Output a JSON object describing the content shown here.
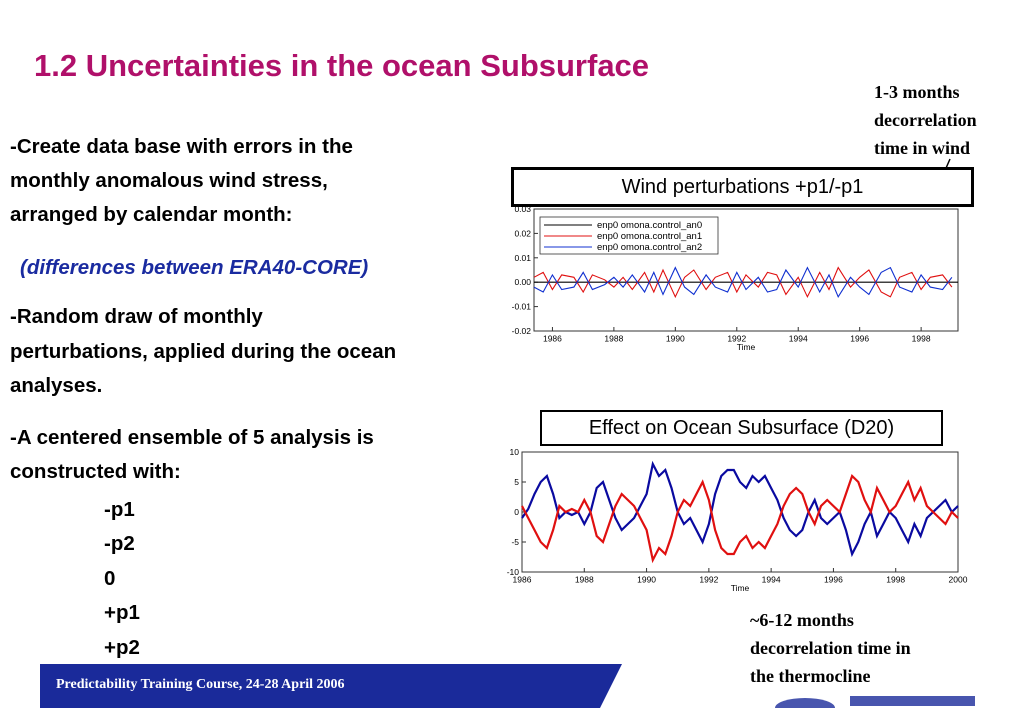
{
  "title": "1.2 Uncertainties in the ocean Subsurface",
  "bullets": {
    "b1_line1": "-Create data base with errors in the",
    "b1_line2": "monthly anomalous wind stress,",
    "b1_line3": "arranged by calendar month:",
    "b1_note": "(differences between ERA40-CORE)",
    "b2_line1": "-Random draw of monthly",
    "b2_line2": "perturbations, applied during the ocean",
    "b2_line3": "analyses.",
    "b3_line1": "-A centered ensemble of 5 analysis is",
    "b3_line2": "constructed with:"
  },
  "ensemble_members": [
    "-p1",
    "-p2",
    "0",
    "+p1",
    "+p2"
  ],
  "note_top": [
    "1-3 months",
    "decorrelation",
    "time in wind"
  ],
  "note_bottom": [
    "~6-12 months",
    "decorrelation time in",
    "the thermocline"
  ],
  "footer": "Predictability Training Course, 24-28 April 2006",
  "colors": {
    "title": "#b0106a",
    "footer": "#1a2a9a",
    "series_blue": "#0a0aa0",
    "series_red": "#e01010"
  },
  "chart_data": [
    {
      "type": "line",
      "title": "Wind perturbations +p1/-p1",
      "xlabel": "Time",
      "ylabel": "",
      "xlim": [
        1985.4,
        1999.2
      ],
      "ylim": [
        -0.02,
        0.03
      ],
      "xticks": [
        "1986",
        "1988",
        "1990",
        "1992",
        "1994",
        "1996",
        "1998"
      ],
      "yticks": [
        "-0.02",
        "-0.01",
        "0.00",
        "0.01",
        "0.02",
        "0.03"
      ],
      "legend_position": "top-left",
      "series": [
        {
          "name": "enp0 omona.control_an0",
          "color": "#000000",
          "x": [
            1985.4,
            1999.2
          ],
          "y": [
            0,
            0
          ]
        },
        {
          "name": "enp0 omona.control_an1",
          "color": "#e01010",
          "x": [
            1985.4,
            1985.7,
            1986.0,
            1986.3,
            1986.7,
            1987.0,
            1987.3,
            1987.7,
            1988.0,
            1988.3,
            1988.6,
            1989.0,
            1989.3,
            1989.6,
            1990.0,
            1990.3,
            1990.6,
            1991.0,
            1991.3,
            1991.7,
            1992.0,
            1992.3,
            1992.7,
            1993.0,
            1993.3,
            1993.6,
            1994.0,
            1994.3,
            1994.7,
            1995.0,
            1995.3,
            1995.7,
            1996.0,
            1996.3,
            1996.7,
            1997.0,
            1997.3,
            1997.7,
            1998.0,
            1998.3,
            1998.7,
            1999.0
          ],
          "y": [
            0.002,
            0.004,
            -0.003,
            0.003,
            0.002,
            -0.004,
            0.003,
            0.001,
            -0.002,
            0.002,
            -0.003,
            0.004,
            -0.004,
            0.005,
            -0.006,
            0.002,
            0.005,
            -0.003,
            0.002,
            0.004,
            -0.004,
            0.003,
            -0.002,
            0.004,
            0.003,
            -0.005,
            0.002,
            -0.006,
            0.004,
            -0.003,
            0.006,
            -0.002,
            0.002,
            0.005,
            -0.004,
            -0.006,
            0.002,
            0.004,
            -0.003,
            0.002,
            0.003,
            -0.002
          ]
        },
        {
          "name": "enp0 omona.control_an2",
          "color": "#1030d0",
          "x": [
            1985.4,
            1985.7,
            1986.0,
            1986.3,
            1986.7,
            1987.0,
            1987.3,
            1987.7,
            1988.0,
            1988.3,
            1988.6,
            1989.0,
            1989.3,
            1989.6,
            1990.0,
            1990.3,
            1990.6,
            1991.0,
            1991.3,
            1991.7,
            1992.0,
            1992.3,
            1992.7,
            1993.0,
            1993.3,
            1993.6,
            1994.0,
            1994.3,
            1994.7,
            1995.0,
            1995.3,
            1995.7,
            1996.0,
            1996.3,
            1996.7,
            1997.0,
            1997.3,
            1997.7,
            1998.0,
            1998.3,
            1998.7,
            1999.0
          ],
          "y": [
            -0.002,
            -0.004,
            0.003,
            -0.003,
            -0.002,
            0.004,
            -0.003,
            -0.001,
            0.002,
            -0.002,
            0.003,
            -0.004,
            0.004,
            -0.005,
            0.006,
            -0.002,
            -0.005,
            0.003,
            -0.002,
            -0.004,
            0.004,
            -0.003,
            0.002,
            -0.004,
            -0.003,
            0.005,
            -0.002,
            0.006,
            -0.004,
            0.003,
            -0.006,
            0.002,
            -0.002,
            -0.005,
            0.004,
            0.006,
            -0.002,
            -0.004,
            0.003,
            -0.002,
            -0.003,
            0.002
          ]
        }
      ]
    },
    {
      "type": "line",
      "title": "Effect on Ocean Subsurface (D20)",
      "xlabel": "Time",
      "ylabel": "",
      "xlim": [
        1986,
        2000
      ],
      "ylim": [
        -10,
        10
      ],
      "xticks": [
        "1986",
        "1988",
        "1990",
        "1992",
        "1994",
        "1996",
        "1998",
        "2000"
      ],
      "yticks": [
        "-10",
        "-5",
        "0",
        "5",
        "10"
      ],
      "series": [
        {
          "color": "#0a0aa0",
          "x": [
            1986.0,
            1986.2,
            1986.4,
            1986.6,
            1986.8,
            1987.0,
            1987.2,
            1987.4,
            1987.6,
            1987.8,
            1988.0,
            1988.2,
            1988.4,
            1988.6,
            1988.8,
            1989.0,
            1989.2,
            1989.4,
            1989.6,
            1989.8,
            1990.0,
            1990.2,
            1990.4,
            1990.6,
            1990.8,
            1991.0,
            1991.2,
            1991.4,
            1991.6,
            1991.8,
            1992.0,
            1992.2,
            1992.4,
            1992.6,
            1992.8,
            1993.0,
            1993.2,
            1993.4,
            1993.6,
            1993.8,
            1994.0,
            1994.2,
            1994.4,
            1994.6,
            1994.8,
            1995.0,
            1995.2,
            1995.4,
            1995.6,
            1995.8,
            1996.0,
            1996.2,
            1996.4,
            1996.6,
            1996.8,
            1997.0,
            1997.2,
            1997.4,
            1997.6,
            1997.8,
            1998.0,
            1998.2,
            1998.4,
            1998.6,
            1998.8,
            1999.0,
            1999.2,
            1999.4,
            1999.6,
            1999.8,
            2000.0
          ],
          "y": [
            -1,
            0.5,
            3,
            5,
            6,
            3,
            -1,
            0,
            -0.5,
            0,
            -2,
            0,
            4,
            5,
            2,
            -1,
            -3,
            -2,
            -1,
            1,
            3,
            8,
            6,
            7,
            4,
            0,
            -2,
            -1,
            -3,
            -5,
            -2,
            3,
            6,
            7,
            7,
            5,
            4,
            6,
            5,
            6,
            4,
            2,
            -1,
            -3,
            -4,
            -3,
            0,
            2,
            -1,
            -2,
            -1,
            0,
            -3,
            -7,
            -5,
            -2,
            0,
            -4,
            -2,
            0,
            -1,
            -3,
            -5,
            -2,
            -4,
            -1,
            0,
            1,
            2,
            0,
            1
          ]
        },
        {
          "color": "#e01010",
          "x": [
            1986.0,
            1986.2,
            1986.4,
            1986.6,
            1986.8,
            1987.0,
            1987.2,
            1987.4,
            1987.6,
            1987.8,
            1988.0,
            1988.2,
            1988.4,
            1988.6,
            1988.8,
            1989.0,
            1989.2,
            1989.4,
            1989.6,
            1989.8,
            1990.0,
            1990.2,
            1990.4,
            1990.6,
            1990.8,
            1991.0,
            1991.2,
            1991.4,
            1991.6,
            1991.8,
            1992.0,
            1992.2,
            1992.4,
            1992.6,
            1992.8,
            1993.0,
            1993.2,
            1993.4,
            1993.6,
            1993.8,
            1994.0,
            1994.2,
            1994.4,
            1994.6,
            1994.8,
            1995.0,
            1995.2,
            1995.4,
            1995.6,
            1995.8,
            1996.0,
            1996.2,
            1996.4,
            1996.6,
            1996.8,
            1997.0,
            1997.2,
            1997.4,
            1997.6,
            1997.8,
            1998.0,
            1998.2,
            1998.4,
            1998.6,
            1998.8,
            1999.0,
            1999.2,
            1999.4,
            1999.6,
            1999.8,
            2000.0
          ],
          "y": [
            1,
            -1,
            -3,
            -5,
            -6,
            -3,
            1,
            0,
            0.5,
            0,
            2,
            0,
            -4,
            -5,
            -2,
            1,
            3,
            2,
            1,
            -1,
            -3,
            -8,
            -6,
            -7,
            -4,
            0,
            2,
            1,
            3,
            5,
            2,
            -3,
            -6,
            -7,
            -7,
            -5,
            -4,
            -6,
            -5,
            -6,
            -4,
            -2,
            1,
            3,
            4,
            3,
            0,
            -2,
            1,
            2,
            1,
            0,
            3,
            6,
            5,
            2,
            0,
            4,
            2,
            0,
            1,
            3,
            5,
            2,
            4,
            1,
            0,
            -1,
            -2,
            0,
            -1
          ]
        }
      ]
    }
  ]
}
